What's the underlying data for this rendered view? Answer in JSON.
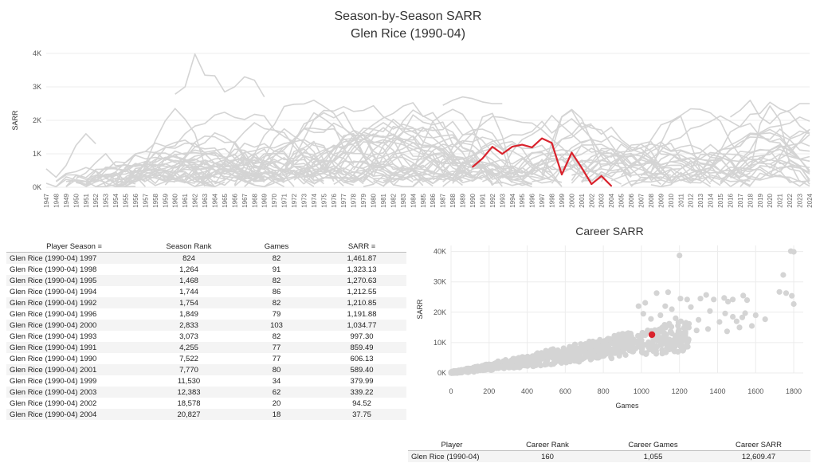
{
  "header": {
    "title_line1": "Season-by-Season SARR",
    "title_line2": "Glen Rice (1990-04)"
  },
  "career_title": "Career SARR",
  "colors": {
    "highlight": "#d9232d",
    "background_series": "#d4d4d4",
    "grid": "#ececec"
  },
  "chart_data": [
    {
      "type": "line",
      "ylabel": "SARR",
      "yticks": [
        "0K",
        "1K",
        "2K",
        "3K",
        "4K"
      ],
      "ylim": [
        0,
        4000
      ],
      "x": [
        1990,
        1991,
        1992,
        1993,
        1994,
        1995,
        1996,
        1997,
        1998,
        1999,
        2000,
        2001,
        2002,
        2003,
        2004
      ],
      "xlim": [
        1947,
        2024
      ],
      "series": [
        {
          "values": [
            606.13,
            859.49,
            1210.85,
            997.3,
            1212.55,
            1270.63,
            1191.88,
            1461.87,
            1323.13,
            379.99,
            1034.77,
            589.4,
            94.52,
            339.22,
            37.75
          ]
        }
      ]
    },
    {
      "type": "scatter",
      "xlabel": "Games",
      "ylabel": "SARR",
      "xlim": [
        0,
        1850
      ],
      "ylim": [
        0,
        42000
      ],
      "xticks": [
        0,
        200,
        400,
        600,
        800,
        1000,
        1200,
        1400,
        1600,
        1800
      ],
      "yticks": [
        "0K",
        "10K",
        "20K",
        "30K",
        "40K"
      ],
      "highlight": {
        "x": 1055,
        "y": 12609.47
      },
      "outliers": [
        [
          1785,
          40100
        ],
        [
          1800,
          39900
        ],
        [
          1200,
          38700
        ],
        [
          1800,
          22700
        ],
        [
          1745,
          32300
        ],
        [
          1725,
          26700
        ],
        [
          1760,
          26300
        ],
        [
          1790,
          25400
        ],
        [
          1555,
          24000
        ],
        [
          1480,
          24200
        ],
        [
          1535,
          25500
        ],
        [
          1545,
          19700
        ],
        [
          1600,
          19000
        ],
        [
          1650,
          17700
        ],
        [
          1435,
          24700
        ],
        [
          1455,
          23500
        ],
        [
          1340,
          25700
        ],
        [
          1310,
          24500
        ],
        [
          1380,
          24200
        ],
        [
          1140,
          26600
        ],
        [
          1080,
          26300
        ],
        [
          1205,
          24500
        ],
        [
          1240,
          24200
        ],
        [
          1020,
          23100
        ],
        [
          985,
          22000
        ],
        [
          1125,
          22000
        ],
        [
          1160,
          21000
        ],
        [
          1260,
          21700
        ],
        [
          1360,
          20400
        ],
        [
          1440,
          19600
        ],
        [
          1480,
          18500
        ],
        [
          1515,
          15000
        ],
        [
          1580,
          15500
        ],
        [
          1410,
          16800
        ],
        [
          1300,
          17500
        ],
        [
          1250,
          16200
        ],
        [
          1180,
          18000
        ],
        [
          1350,
          14500
        ],
        [
          1290,
          14000
        ],
        [
          1450,
          13700
        ],
        [
          1530,
          18300
        ],
        [
          1500,
          17000
        ],
        [
          1100,
          19000
        ],
        [
          1050,
          17800
        ],
        [
          1010,
          19500
        ]
      ]
    }
  ],
  "season_table": {
    "columns": [
      "Player Season",
      "Season Rank",
      "Games",
      "SARR"
    ],
    "rows": [
      [
        "Glen Rice (1990-04) 1997",
        "824",
        "82",
        "1,461.87"
      ],
      [
        "Glen Rice (1990-04) 1998",
        "1,264",
        "91",
        "1,323.13"
      ],
      [
        "Glen Rice (1990-04) 1995",
        "1,468",
        "82",
        "1,270.63"
      ],
      [
        "Glen Rice (1990-04) 1994",
        "1,744",
        "86",
        "1,212.55"
      ],
      [
        "Glen Rice (1990-04) 1992",
        "1,754",
        "82",
        "1,210.85"
      ],
      [
        "Glen Rice (1990-04) 1996",
        "1,849",
        "79",
        "1,191.88"
      ],
      [
        "Glen Rice (1990-04) 2000",
        "2,833",
        "103",
        "1,034.77"
      ],
      [
        "Glen Rice (1990-04) 1993",
        "3,073",
        "82",
        "997.30"
      ],
      [
        "Glen Rice (1990-04) 1991",
        "4,255",
        "77",
        "859.49"
      ],
      [
        "Glen Rice (1990-04) 1990",
        "7,522",
        "77",
        "606.13"
      ],
      [
        "Glen Rice (1990-04) 2001",
        "7,770",
        "80",
        "589.40"
      ],
      [
        "Glen Rice (1990-04) 1999",
        "11,530",
        "34",
        "379.99"
      ],
      [
        "Glen Rice (1990-04) 2003",
        "12,383",
        "62",
        "339.22"
      ],
      [
        "Glen Rice (1990-04) 2002",
        "18,578",
        "20",
        "94.52"
      ],
      [
        "Glen Rice (1990-04) 2004",
        "20,827",
        "18",
        "37.75"
      ]
    ]
  },
  "career_table": {
    "columns": [
      "Player",
      "Career Rank",
      "Career Games",
      "Career SARR"
    ],
    "rows": [
      [
        "Glen Rice (1990-04)",
        "160",
        "1,055",
        "12,609.47"
      ]
    ]
  }
}
